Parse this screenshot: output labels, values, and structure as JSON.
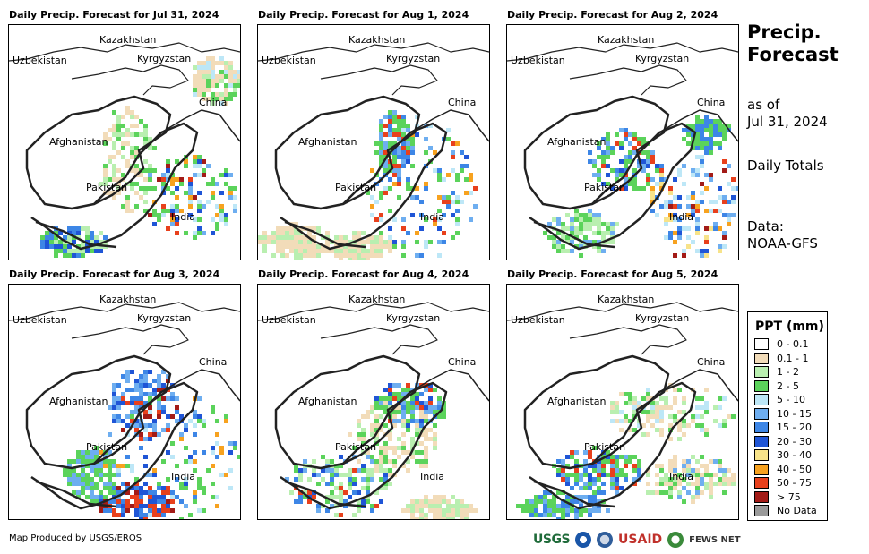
{
  "panels": [
    {
      "title": "Daily Precip. Forecast for Jul 31, 2024"
    },
    {
      "title": "Daily Precip. Forecast for Aug 1, 2024"
    },
    {
      "title": "Daily Precip. Forecast for Aug 2, 2024"
    },
    {
      "title": "Daily Precip. Forecast for Aug 3, 2024"
    },
    {
      "title": "Daily Precip. Forecast for Aug 4, 2024"
    },
    {
      "title": "Daily Precip. Forecast for Aug 5, 2024"
    }
  ],
  "map_labels": {
    "kazakhstan": "Kazakhstan",
    "uzbekistan": "Uzbekistan",
    "kyrgyzstan": "Kyrgyzstan",
    "china": "China",
    "afghanistan": "Afghanistan",
    "pakistan": "Pakistan",
    "india": "India"
  },
  "sidebar": {
    "title_line1": "Precip.",
    "title_line2": "Forecast",
    "as_of_label": "as of",
    "as_of_date": "Jul 31, 2024",
    "totals": "Daily Totals",
    "data_label": "Data:",
    "data_source": "NOAA-GFS"
  },
  "legend": {
    "title": "PPT (mm)",
    "items": [
      {
        "label": "0 - 0.1",
        "color": "#ffffff"
      },
      {
        "label": "0.1 - 1",
        "color": "#f2dcb9"
      },
      {
        "label": "1 - 2",
        "color": "#b9efb0"
      },
      {
        "label": "2 - 5",
        "color": "#5bd35b"
      },
      {
        "label": "5 - 10",
        "color": "#bde7f7"
      },
      {
        "label": "10 - 15",
        "color": "#6eaef0"
      },
      {
        "label": "15 - 20",
        "color": "#3d86e6"
      },
      {
        "label": "20 - 30",
        "color": "#1f55d6"
      },
      {
        "label": "30 - 40",
        "color": "#f7e38a"
      },
      {
        "label": "40 - 50",
        "color": "#f7a21f"
      },
      {
        "label": "50 - 75",
        "color": "#e8401c"
      },
      {
        "label": "> 75",
        "color": "#a31b17"
      },
      {
        "label": "No Data",
        "color": "#9a9a9a"
      }
    ]
  },
  "footer": {
    "credit": "Map Produced by USGS/EROS",
    "logo_usgs": "USGS",
    "logo_usaid": "USAID",
    "logo_fews": "FEWS NET"
  }
}
